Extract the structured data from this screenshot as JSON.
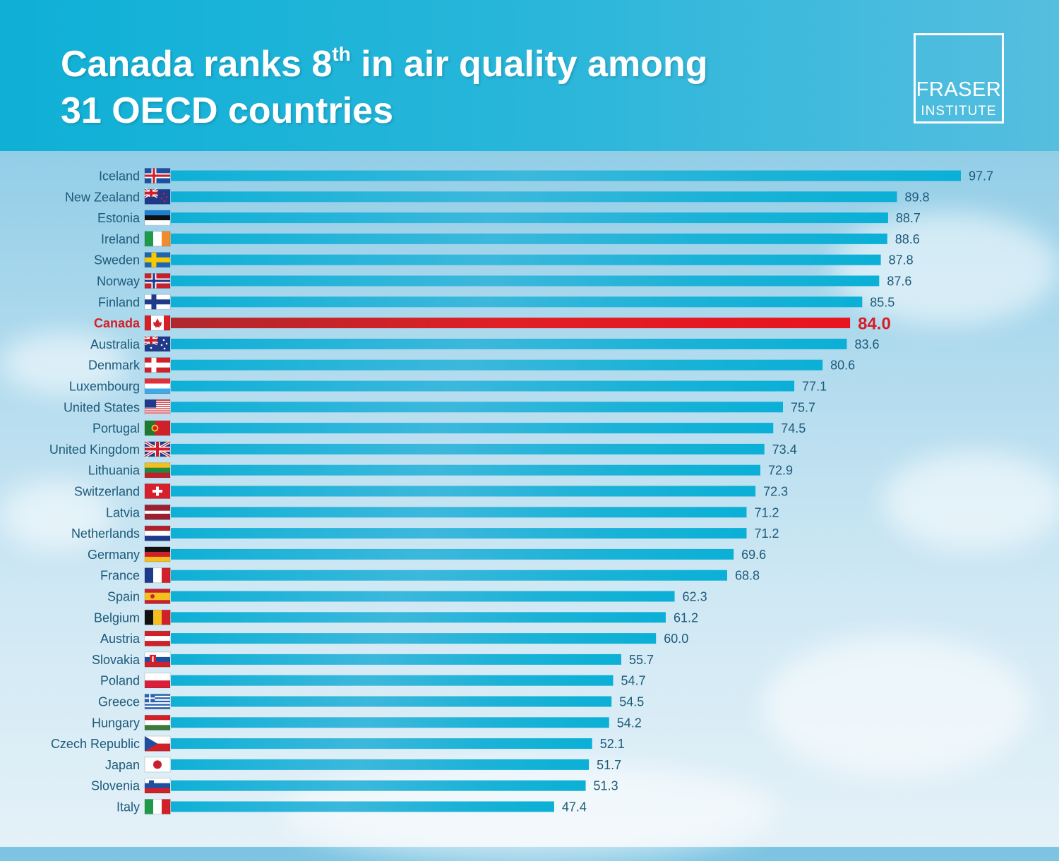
{
  "header": {
    "title_line1_pre": "Canada ranks 8",
    "title_sup": "th",
    "title_line1_post": " in air quality among",
    "title_line2": "31 OECD countries"
  },
  "logo": {
    "line1": "FRASER",
    "line2": "INSTITUTE"
  },
  "colors": {
    "bar": "#11b2d6",
    "highlight": "#e21d26",
    "label": "#1c5a7a",
    "header": "#1ab2d8"
  },
  "chart_data": {
    "type": "bar",
    "orientation": "horizontal",
    "highlight": "Canada",
    "xlim": [
      0,
      97.7
    ],
    "grid": false,
    "categories": [
      "Iceland",
      "New Zealand",
      "Estonia",
      "Ireland",
      "Sweden",
      "Norway",
      "Finland",
      "Canada",
      "Australia",
      "Denmark",
      "Luxembourg",
      "United States",
      "Portugal",
      "United Kingdom",
      "Lithuania",
      "Switzerland",
      "Latvia",
      "Netherlands",
      "Germany",
      "France",
      "Spain",
      "Belgium",
      "Austria",
      "Slovakia",
      "Poland",
      "Greece",
      "Hungary",
      "Czech Republic",
      "Japan",
      "Slovenia",
      "Italy"
    ],
    "values": [
      97.7,
      89.8,
      88.7,
      88.6,
      87.8,
      87.6,
      85.5,
      84.0,
      83.6,
      80.6,
      77.1,
      75.7,
      74.5,
      73.4,
      72.9,
      72.3,
      71.2,
      71.2,
      69.6,
      68.8,
      62.3,
      61.2,
      60.0,
      55.7,
      54.7,
      54.5,
      54.2,
      52.1,
      51.7,
      51.3,
      47.4
    ],
    "value_labels": [
      "97.7",
      "89.8",
      "88.7",
      "88.6",
      "87.8",
      "87.6",
      "85.5",
      "84.0",
      "83.6",
      "80.6",
      "77.1",
      "75.7",
      "74.5",
      "73.4",
      "72.9",
      "72.3",
      "71.2",
      "71.2",
      "69.6",
      "68.8",
      "62.3",
      "61.2",
      "60.0",
      "55.7",
      "54.7",
      "54.5",
      "54.2",
      "52.1",
      "51.7",
      "51.3",
      "47.4"
    ],
    "flags": [
      "iceland-flag-icon",
      "new-zealand-flag-icon",
      "estonia-flag-icon",
      "ireland-flag-icon",
      "sweden-flag-icon",
      "norway-flag-icon",
      "finland-flag-icon",
      "canada-flag-icon",
      "australia-flag-icon",
      "denmark-flag-icon",
      "luxembourg-flag-icon",
      "united-states-flag-icon",
      "portugal-flag-icon",
      "united-kingdom-flag-icon",
      "lithuania-flag-icon",
      "switzerland-flag-icon",
      "latvia-flag-icon",
      "netherlands-flag-icon",
      "germany-flag-icon",
      "france-flag-icon",
      "spain-flag-icon",
      "belgium-flag-icon",
      "austria-flag-icon",
      "slovakia-flag-icon",
      "poland-flag-icon",
      "greece-flag-icon",
      "hungary-flag-icon",
      "czech-republic-flag-icon",
      "japan-flag-icon",
      "slovenia-flag-icon",
      "italy-flag-icon"
    ]
  }
}
